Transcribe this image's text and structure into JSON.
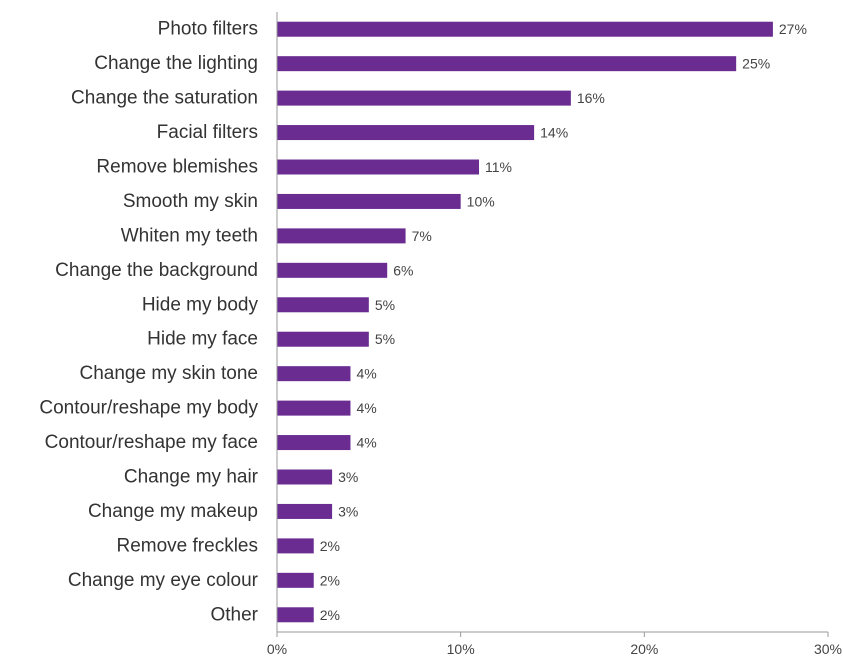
{
  "chart_data": {
    "type": "bar",
    "orientation": "horizontal",
    "categories": [
      "Photo filters",
      "Change the lighting",
      "Change the saturation",
      "Facial filters",
      "Remove blemishes",
      "Smooth my skin",
      "Whiten my teeth",
      "Change the background",
      "Hide my body",
      "Hide my face",
      "Change my skin tone",
      "Contour/reshape my body",
      "Contour/reshape my face",
      "Change my hair",
      "Change my makeup",
      "Remove freckles",
      "Change my eye colour",
      "Other"
    ],
    "values": [
      27,
      25,
      16,
      14,
      11,
      10,
      7,
      6,
      5,
      5,
      4,
      4,
      4,
      3,
      3,
      2,
      2,
      2
    ],
    "value_labels": [
      "27%",
      "25%",
      "16%",
      "14%",
      "11%",
      "10%",
      "7%",
      "6%",
      "5%",
      "5%",
      "4%",
      "4%",
      "4%",
      "3%",
      "3%",
      "2%",
      "2%",
      "2%"
    ],
    "x_ticks": [
      0,
      10,
      20,
      30
    ],
    "x_tick_labels": [
      "0%",
      "10%",
      "20%",
      "30%"
    ],
    "xlim": [
      0,
      30
    ],
    "title": "",
    "xlabel": "",
    "ylabel": "",
    "grid": false,
    "bar_color": "#6a2c91"
  }
}
